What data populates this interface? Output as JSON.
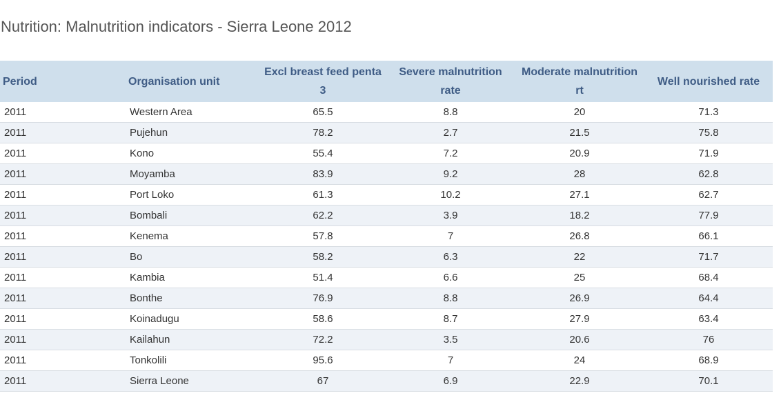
{
  "title": "Nutrition: Malnutrition indicators - Sierra Leone 2012",
  "table": {
    "columns": [
      "Period",
      "Organisation unit",
      "Excl breast feed penta 3",
      "Severe malnutrition rate",
      "Moderate malnutrition rt",
      "Well nourished rate"
    ],
    "rows": [
      [
        "2011",
        "Western Area",
        65.5,
        8.8,
        20,
        71.3
      ],
      [
        "2011",
        "Pujehun",
        78.2,
        2.7,
        21.5,
        75.8
      ],
      [
        "2011",
        "Kono",
        55.4,
        7.2,
        20.9,
        71.9
      ],
      [
        "2011",
        "Moyamba",
        83.9,
        9.2,
        28,
        62.8
      ],
      [
        "2011",
        "Port Loko",
        61.3,
        10.2,
        27.1,
        62.7
      ],
      [
        "2011",
        "Bombali",
        62.2,
        3.9,
        18.2,
        77.9
      ],
      [
        "2011",
        "Kenema",
        57.8,
        7,
        26.8,
        66.1
      ],
      [
        "2011",
        "Bo",
        58.2,
        6.3,
        22,
        71.7
      ],
      [
        "2011",
        "Kambia",
        51.4,
        6.6,
        25,
        68.4
      ],
      [
        "2011",
        "Bonthe",
        76.9,
        8.8,
        26.9,
        64.4
      ],
      [
        "2011",
        "Koinadugu",
        58.6,
        8.7,
        27.9,
        63.4
      ],
      [
        "2011",
        "Kailahun",
        72.2,
        3.5,
        20.6,
        76
      ],
      [
        "2011",
        "Tonkolili",
        95.6,
        7,
        24,
        68.9
      ],
      [
        "2011",
        "Sierra Leone",
        67,
        6.9,
        22.9,
        70.1
      ]
    ]
  }
}
